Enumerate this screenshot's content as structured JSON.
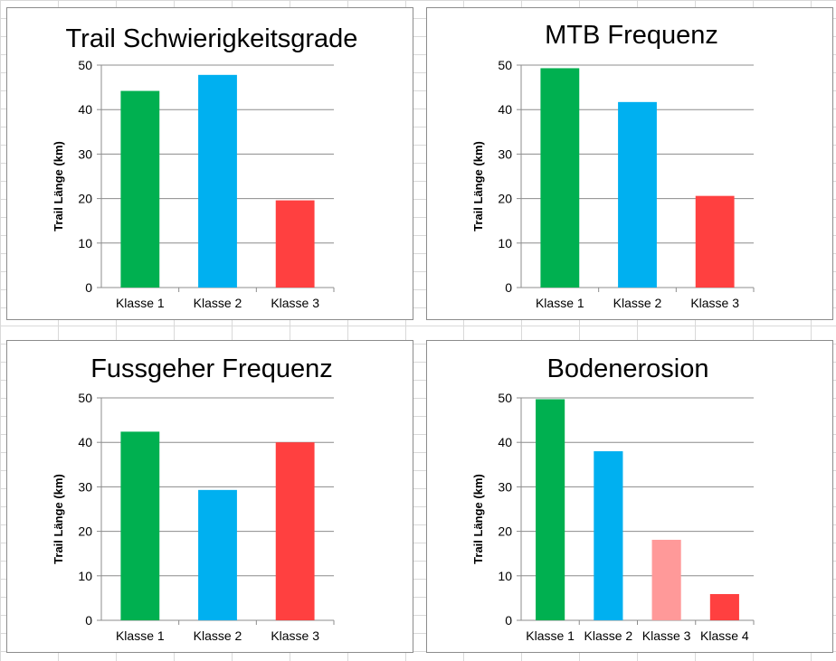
{
  "chart_data": [
    {
      "type": "bar",
      "title": "Trail Schwierigkeitsgrade",
      "ylabel": "Trail Länge (km)",
      "xlabel": "",
      "categories": [
        "Klasse 1",
        "Klasse 2",
        "Klasse 3"
      ],
      "values": [
        44.2,
        47.8,
        19.6
      ],
      "colors": [
        "#00b050",
        "#00b0f0",
        "#ff4040"
      ],
      "ylim": [
        0,
        50
      ],
      "yticks": [
        0,
        10,
        20,
        30,
        40,
        50
      ],
      "grid": true,
      "legend": "none"
    },
    {
      "type": "bar",
      "title": "MTB Frequenz",
      "ylabel": "Trail Länge (km)",
      "xlabel": "",
      "categories": [
        "Klasse 1",
        "Klasse 2",
        "Klasse 3"
      ],
      "values": [
        49.3,
        41.7,
        20.6
      ],
      "colors": [
        "#00b050",
        "#00b0f0",
        "#ff4040"
      ],
      "ylim": [
        0,
        50
      ],
      "yticks": [
        0,
        10,
        20,
        30,
        40,
        50
      ],
      "grid": true,
      "legend": "none"
    },
    {
      "type": "bar",
      "title": "Fussgeher Frequenz",
      "ylabel": "Trail Länge (km)",
      "xlabel": "",
      "categories": [
        "Klasse 1",
        "Klasse 2",
        "Klasse 3"
      ],
      "values": [
        42.4,
        29.3,
        40.0
      ],
      "colors": [
        "#00b050",
        "#00b0f0",
        "#ff4040"
      ],
      "ylim": [
        0,
        50
      ],
      "yticks": [
        0,
        10,
        20,
        30,
        40,
        50
      ],
      "grid": true,
      "legend": "none"
    },
    {
      "type": "bar",
      "title": "Bodenerosion",
      "ylabel": "Trail Länge (km)",
      "xlabel": "",
      "categories": [
        "Klasse 1",
        "Klasse 2",
        "Klasse 3",
        "Klasse 4"
      ],
      "values": [
        49.7,
        38.0,
        18.1,
        5.9
      ],
      "colors": [
        "#00b050",
        "#00b0f0",
        "#ff9999",
        "#ff4040"
      ],
      "ylim": [
        0,
        50
      ],
      "yticks": [
        0,
        10,
        20,
        30,
        40,
        50
      ],
      "grid": true,
      "legend": "none"
    }
  ]
}
